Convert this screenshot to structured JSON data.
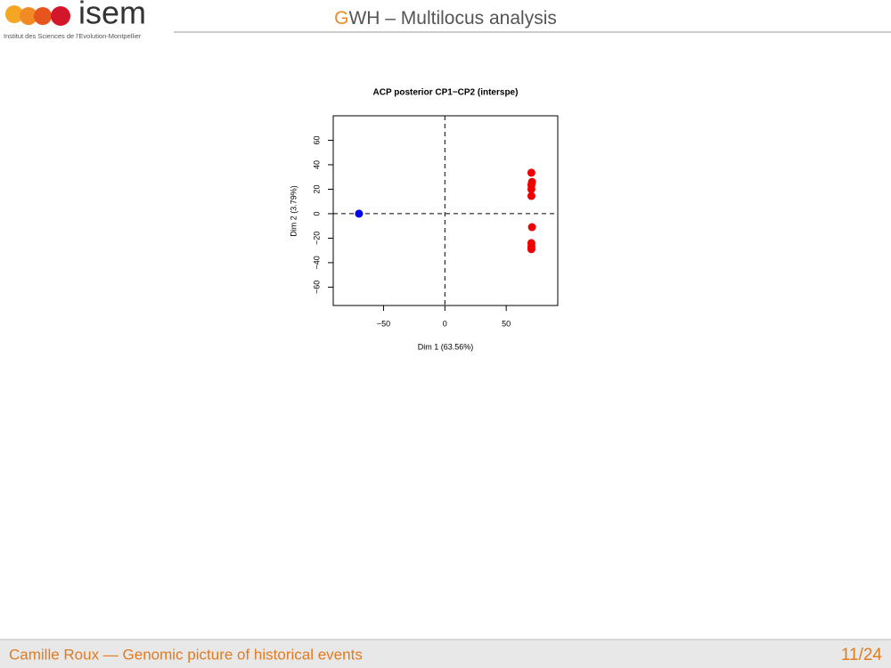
{
  "header": {
    "logo_text": "isem",
    "logo_subtitle": "Institut des Sciences de l'Evolution-Montpellier",
    "title_accent": "G",
    "title_rest": "WH – Multilocus analysis"
  },
  "footer": {
    "text": "Camille Roux — Genomic picture of historical events",
    "page": "11/24"
  },
  "chart_data": {
    "type": "scatter",
    "title": "ACP posterior CP1−CP2 (interspe)",
    "x_label": "Dim 1 (63.56%)",
    "y_label": "Dim 2 (3.79%)",
    "xlim": [
      -91,
      92
    ],
    "ylim": [
      -75,
      80
    ],
    "xticks": [
      {
        "value": -50,
        "label": "−50"
      },
      0,
      50
    ],
    "yticks": [
      {
        "value": -60,
        "label": "−60"
      },
      {
        "value": -40,
        "label": "−40"
      },
      {
        "value": -20,
        "label": "−20"
      },
      0,
      20,
      40,
      60
    ],
    "hline": 0,
    "vline": 0,
    "series": [
      {
        "color": "#0000ee",
        "x": [
          -70
        ],
        "y": [
          0
        ]
      },
      {
        "color": "#ee0000",
        "x": [
          70.5,
          71,
          70.5,
          70.5,
          70.5,
          71,
          70.5,
          70.5,
          70.5
        ],
        "y": [
          33.5,
          26,
          23.5,
          20,
          14.5,
          -11,
          -24,
          -27,
          -29
        ]
      }
    ]
  }
}
